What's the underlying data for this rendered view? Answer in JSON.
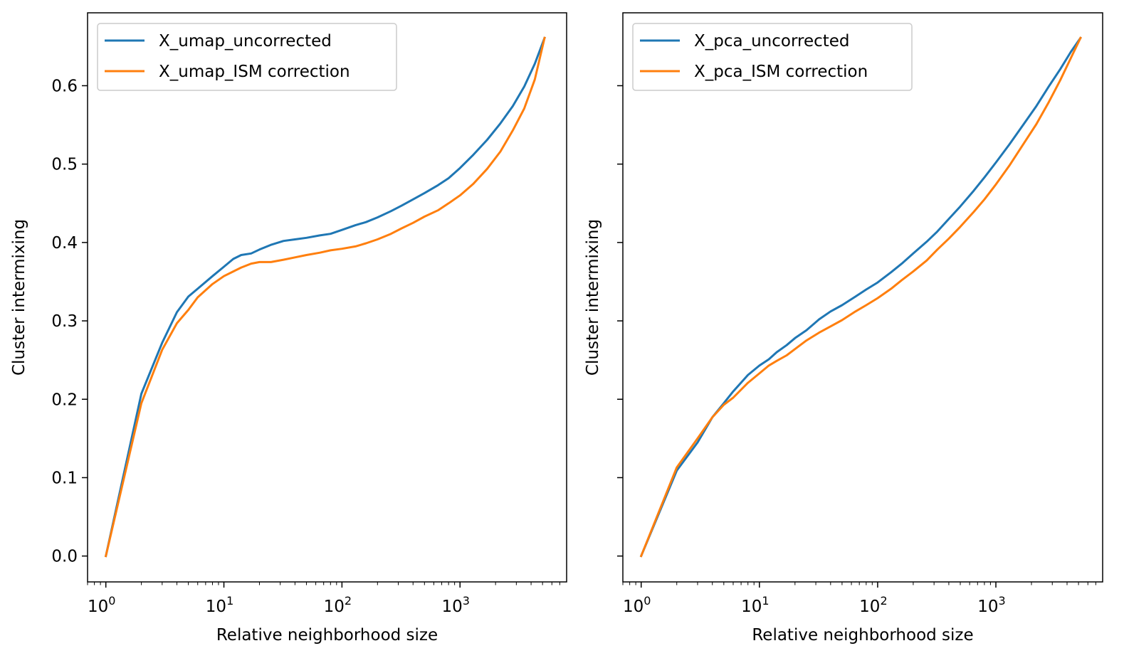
{
  "chart_data": [
    {
      "type": "line",
      "xscale": "log",
      "xlabel": "Relative neighborhood size",
      "ylabel": "Cluster intermixing",
      "xlim": [
        0.7,
        8000
      ],
      "ylim": [
        -0.033,
        0.693
      ],
      "xticks": [
        1,
        10,
        100,
        1000
      ],
      "yticks": [
        0.0,
        0.1,
        0.2,
        0.3,
        0.4,
        0.5,
        0.6
      ],
      "ytick_labels": [
        "0.0",
        "0.1",
        "0.2",
        "0.3",
        "0.4",
        "0.5",
        "0.6"
      ],
      "legend_position": "upper-left",
      "series": [
        {
          "name": "X_umap_uncorrected",
          "color": "#1f77b4",
          "x": [
            1,
            2,
            3,
            4,
            5,
            6,
            8,
            10,
            12,
            14,
            17,
            20,
            25,
            32,
            40,
            50,
            65,
            80,
            100,
            130,
            160,
            200,
            260,
            320,
            400,
            500,
            650,
            800,
            1000,
            1300,
            1700,
            2200,
            2800,
            3500,
            4300,
            5200
          ],
          "y": [
            0.0,
            0.207,
            0.272,
            0.311,
            0.331,
            0.341,
            0.357,
            0.369,
            0.379,
            0.384,
            0.386,
            0.391,
            0.397,
            0.402,
            0.404,
            0.406,
            0.409,
            0.411,
            0.416,
            0.422,
            0.426,
            0.432,
            0.44,
            0.447,
            0.455,
            0.463,
            0.473,
            0.482,
            0.495,
            0.512,
            0.531,
            0.552,
            0.574,
            0.599,
            0.628,
            0.661
          ]
        },
        {
          "name": "X_umap_ISM correction",
          "color": "#ff7f0e",
          "x": [
            1,
            2,
            3,
            4,
            5,
            6,
            8,
            10,
            12,
            14,
            17,
            20,
            25,
            32,
            40,
            50,
            65,
            80,
            100,
            130,
            160,
            200,
            260,
            320,
            400,
            500,
            650,
            800,
            1000,
            1300,
            1700,
            2200,
            2800,
            3500,
            4300,
            5200
          ],
          "y": [
            0.0,
            0.195,
            0.263,
            0.297,
            0.314,
            0.33,
            0.347,
            0.357,
            0.363,
            0.368,
            0.373,
            0.375,
            0.375,
            0.378,
            0.381,
            0.384,
            0.387,
            0.39,
            0.392,
            0.395,
            0.399,
            0.404,
            0.411,
            0.418,
            0.425,
            0.433,
            0.441,
            0.45,
            0.46,
            0.475,
            0.494,
            0.516,
            0.543,
            0.571,
            0.608,
            0.661
          ]
        }
      ]
    },
    {
      "type": "line",
      "xscale": "log",
      "xlabel": "Relative neighborhood size",
      "ylabel": "Cluster intermixing",
      "xlim": [
        0.7,
        8000
      ],
      "ylim": [
        -0.033,
        0.693
      ],
      "xticks": [
        1,
        10,
        100,
        1000
      ],
      "yticks": [
        0.0,
        0.1,
        0.2,
        0.3,
        0.4,
        0.5,
        0.6
      ],
      "ytick_labels": [],
      "legend_position": "upper-left",
      "series": [
        {
          "name": "X_pca_uncorrected",
          "color": "#1f77b4",
          "x": [
            1,
            2,
            3,
            4,
            5,
            6,
            8,
            10,
            12,
            14,
            17,
            20,
            25,
            32,
            40,
            50,
            65,
            80,
            100,
            130,
            160,
            200,
            260,
            320,
            400,
            500,
            650,
            800,
            1000,
            1300,
            1700,
            2200,
            2800,
            3500,
            4300,
            5200
          ],
          "y": [
            0.0,
            0.109,
            0.145,
            0.177,
            0.195,
            0.21,
            0.231,
            0.243,
            0.251,
            0.26,
            0.269,
            0.278,
            0.288,
            0.302,
            0.312,
            0.32,
            0.331,
            0.34,
            0.349,
            0.362,
            0.373,
            0.386,
            0.401,
            0.414,
            0.43,
            0.446,
            0.466,
            0.483,
            0.502,
            0.525,
            0.55,
            0.574,
            0.599,
            0.621,
            0.643,
            0.661
          ]
        },
        {
          "name": "X_pca_ISM correction",
          "color": "#ff7f0e",
          "x": [
            1,
            2,
            3,
            4,
            5,
            6,
            8,
            10,
            12,
            14,
            17,
            20,
            25,
            32,
            40,
            50,
            65,
            80,
            100,
            130,
            160,
            200,
            260,
            320,
            400,
            500,
            650,
            800,
            1000,
            1300,
            1700,
            2200,
            2800,
            3500,
            4300,
            5200
          ],
          "y": [
            0.0,
            0.113,
            0.15,
            0.177,
            0.193,
            0.202,
            0.221,
            0.233,
            0.243,
            0.249,
            0.256,
            0.264,
            0.275,
            0.285,
            0.293,
            0.301,
            0.312,
            0.32,
            0.329,
            0.341,
            0.352,
            0.363,
            0.377,
            0.391,
            0.405,
            0.42,
            0.439,
            0.455,
            0.474,
            0.498,
            0.525,
            0.551,
            0.579,
            0.607,
            0.635,
            0.661
          ]
        }
      ]
    }
  ]
}
